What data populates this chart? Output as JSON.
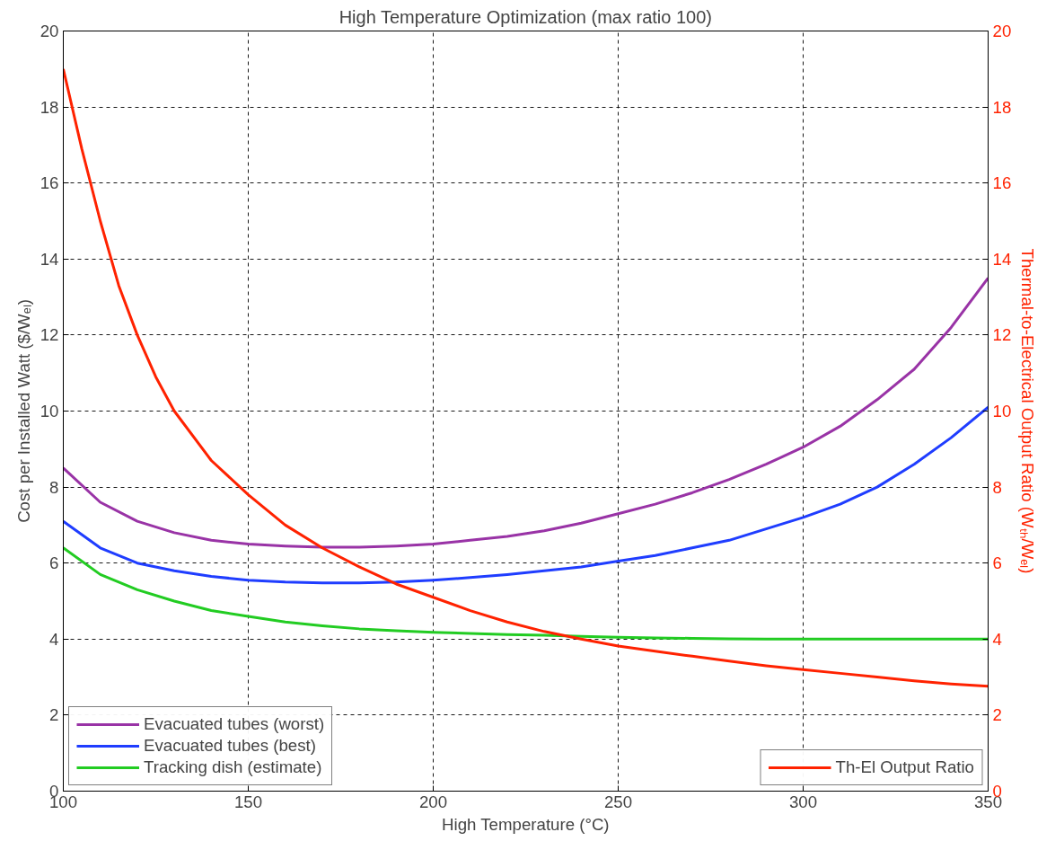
{
  "chart_data": {
    "type": "line",
    "title": "High Temperature Optimization (max ratio 100)",
    "xlabel": "High Temperature (°C)",
    "ylabel": "Cost per Installed Watt ($/Wₑₗ)",
    "y2label": "Thermal-to-Electrical Output Ratio (Wₜₕ/Wₑₗ)",
    "xlim": [
      100,
      350
    ],
    "xticks": [
      100,
      150,
      200,
      250,
      300,
      350
    ],
    "ylim": [
      0,
      20
    ],
    "yticks": [
      0,
      2,
      4,
      6,
      8,
      10,
      12,
      14,
      16,
      18,
      20
    ],
    "y2lim": [
      0,
      20
    ],
    "y2ticks": [
      0,
      2,
      4,
      6,
      8,
      10,
      12,
      14,
      16,
      18,
      20
    ],
    "grid": true,
    "legend": "bottom left",
    "line_style": "solid",
    "marker": "none",
    "series": [
      {
        "name": "Evacuated tubes (worst)",
        "color": "#9933a6",
        "x": [
          100,
          110,
          120,
          130,
          140,
          150,
          160,
          170,
          180,
          190,
          200,
          210,
          220,
          230,
          240,
          250,
          260,
          270,
          280,
          290,
          300,
          310,
          320,
          330,
          340,
          350
        ],
        "values": [
          8.5,
          7.6,
          7.1,
          6.8,
          6.6,
          6.5,
          6.45,
          6.42,
          6.42,
          6.45,
          6.5,
          6.6,
          6.7,
          6.85,
          7.05,
          7.3,
          7.55,
          7.85,
          8.2,
          8.6,
          9.05,
          9.6,
          10.3,
          11.1,
          12.2,
          13.5
        ]
      },
      {
        "name": "Evacuated tubes (best)",
        "color": "#1f3dff",
        "x": [
          100,
          110,
          120,
          130,
          140,
          150,
          160,
          170,
          180,
          190,
          200,
          210,
          220,
          230,
          240,
          250,
          260,
          270,
          280,
          290,
          300,
          310,
          320,
          330,
          340,
          350
        ],
        "values": [
          7.1,
          6.4,
          6.0,
          5.8,
          5.65,
          5.55,
          5.5,
          5.48,
          5.48,
          5.5,
          5.55,
          5.62,
          5.7,
          5.8,
          5.9,
          6.05,
          6.2,
          6.4,
          6.6,
          6.9,
          7.2,
          7.55,
          8.0,
          8.6,
          9.3,
          10.1
        ]
      },
      {
        "name": "Tracking dish (estimate)",
        "color": "#22cc22",
        "x": [
          100,
          110,
          120,
          130,
          140,
          150,
          160,
          170,
          180,
          190,
          200,
          210,
          220,
          230,
          240,
          250,
          260,
          270,
          280,
          290,
          300,
          310,
          320,
          330,
          340,
          350
        ],
        "values": [
          6.4,
          5.7,
          5.3,
          5.0,
          4.75,
          4.6,
          4.45,
          4.35,
          4.27,
          4.22,
          4.18,
          4.15,
          4.12,
          4.1,
          4.07,
          4.05,
          4.03,
          4.02,
          4.01,
          4.0,
          4.0,
          4.0,
          4.0,
          4.0,
          4.0,
          4.0
        ]
      },
      {
        "name": "Th-El Output Ratio",
        "color": "#ff2200",
        "axis": "y2",
        "x": [
          100,
          105,
          110,
          115,
          120,
          125,
          130,
          140,
          150,
          160,
          170,
          180,
          190,
          200,
          210,
          220,
          230,
          240,
          250,
          260,
          270,
          280,
          290,
          300,
          310,
          320,
          330,
          340,
          350
        ],
        "values": [
          19.0,
          16.9,
          15.0,
          13.3,
          12.0,
          10.9,
          10.0,
          8.7,
          7.8,
          7.0,
          6.4,
          5.9,
          5.45,
          5.1,
          4.75,
          4.45,
          4.2,
          4.0,
          3.82,
          3.68,
          3.55,
          3.42,
          3.3,
          3.2,
          3.1,
          3.0,
          2.9,
          2.82,
          2.76
        ]
      }
    ]
  }
}
